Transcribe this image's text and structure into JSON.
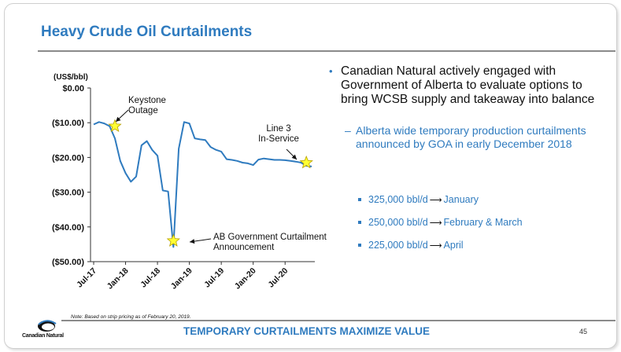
{
  "slide": {
    "title": "Heavy Crude Oil Curtailments",
    "page_number": "45",
    "footer": "TEMPORARY CURTAILMENTS MAXIMIZE VALUE",
    "note": "Note: Based on strip pricing as of February 20, 2019.",
    "logo_text": "Canadian Natural",
    "accent_color": "#2f7bbf"
  },
  "bullets": {
    "main": "Canadian Natural actively engaged with Government of Alberta to evaluate options to bring WCSB supply and takeaway into balance",
    "sub": "Alberta wide temporary production curtailments announced by GOA in early December 2018",
    "items": [
      {
        "volume": "325,000 bbl/d",
        "period": "January"
      },
      {
        "volume": "250,000 bbl/d",
        "period": "February & March"
      },
      {
        "volume": "225,000 bbl/d",
        "period": "April"
      }
    ]
  },
  "chart_data": {
    "type": "line",
    "ylabel": "(US$/bbl)",
    "ylim": [
      -50,
      0
    ],
    "yticks": [
      0,
      -10,
      -20,
      -30,
      -40,
      -50
    ],
    "ytick_labels": [
      "$0.00",
      "($10.00)",
      "($20.00)",
      "($30.00)",
      "($40.00)",
      "($50.00)"
    ],
    "xlim": [
      "2017-07",
      "2020-12"
    ],
    "xticks": [
      "2017-07",
      "2018-01",
      "2018-07",
      "2019-01",
      "2019-07",
      "2020-01",
      "2020-07"
    ],
    "xtick_labels": [
      "Jul-17",
      "Jan-18",
      "Jul-18",
      "Jan-19",
      "Jul-19",
      "Jan-20",
      "Jul-20"
    ],
    "line_color": "#2f7bbf",
    "series": [
      {
        "x": [
          "2017-07",
          "2017-08",
          "2017-09",
          "2017-10",
          "2017-11",
          "2017-12",
          "2018-01",
          "2018-02",
          "2018-03",
          "2018-04",
          "2018-05",
          "2018-06",
          "2018-07",
          "2018-08",
          "2018-09",
          "2018-10",
          "2018-11",
          "2018-12",
          "2019-01",
          "2019-02",
          "2019-03",
          "2019-04",
          "2019-05",
          "2019-06",
          "2019-07",
          "2019-08",
          "2019-09",
          "2019-10",
          "2019-11",
          "2019-12",
          "2020-01",
          "2020-02",
          "2020-03",
          "2020-04",
          "2020-05",
          "2020-06",
          "2020-07",
          "2020-08",
          "2020-09",
          "2020-10",
          "2020-11",
          "2020-12"
        ],
        "y": [
          -10.5,
          -9.8,
          -10.2,
          -11.0,
          -14.5,
          -21.0,
          -24.5,
          -27.0,
          -25.5,
          -16.5,
          -15.3,
          -17.8,
          -19.5,
          -29.5,
          -29.8,
          -45.8,
          -17.5,
          -9.8,
          -10.2,
          -14.5,
          -14.8,
          -15.0,
          -17.0,
          -17.8,
          -18.3,
          -20.5,
          -20.7,
          -21.0,
          -21.5,
          -21.7,
          -22.2,
          -20.6,
          -20.3,
          -20.5,
          -20.7,
          -20.7,
          -20.8,
          -21.0,
          -21.2,
          -21.5,
          -22.4,
          -22.6
        ]
      }
    ],
    "annotations": [
      {
        "label_lines": [
          "Keystone",
          "Outage"
        ],
        "x": "2017-11",
        "y": -11.0
      },
      {
        "label_lines": [
          "AB Government Curtailment",
          "Announcement"
        ],
        "x": "2018-10",
        "y": -44.0
      },
      {
        "label_lines": [
          "Line 3",
          "In-Service"
        ],
        "x": "2020-11",
        "y": -21.5
      }
    ]
  }
}
